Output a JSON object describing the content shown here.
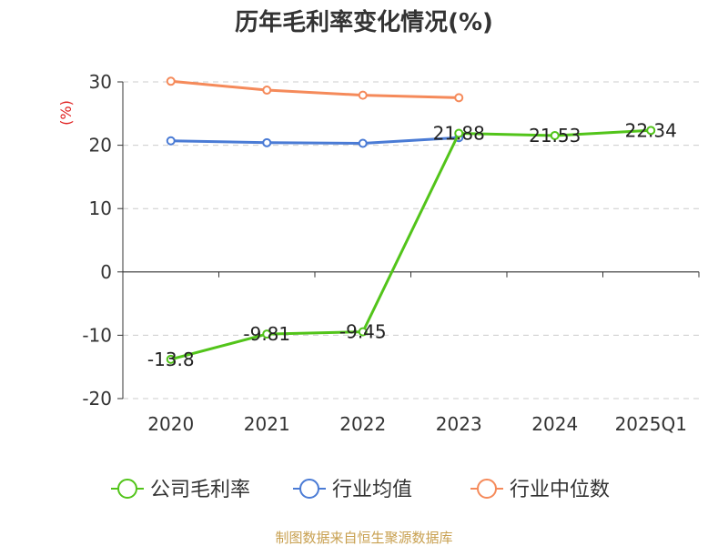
{
  "chart_data": {
    "type": "line",
    "title": "历年毛利率变化情况(%)",
    "y_unit": "(%)",
    "categories": [
      "2020",
      "2021",
      "2022",
      "2023",
      "2024",
      "2025Q1"
    ],
    "ylim": [
      -20,
      30
    ],
    "yticks": [
      -20,
      -10,
      0,
      10,
      20,
      30
    ],
    "grid": true,
    "legend_position": "bottom",
    "series": [
      {
        "name": "公司毛利率",
        "color": "#52c41a",
        "values": [
          -13.8,
          -9.81,
          -9.45,
          21.88,
          21.53,
          22.34
        ],
        "labels": [
          "-13.8",
          "-9.81",
          "-9.45",
          "21.88",
          "21.53",
          "22.34"
        ]
      },
      {
        "name": "行业均值",
        "color": "#4a7bd5",
        "values": [
          20.7,
          20.4,
          20.3,
          21.2,
          null,
          null
        ]
      },
      {
        "name": "行业中位数",
        "color": "#f58a5a",
        "values": [
          30.1,
          28.7,
          27.9,
          27.5,
          null,
          null
        ]
      }
    ]
  },
  "footer": "制图数据来自恒生聚源数据库"
}
